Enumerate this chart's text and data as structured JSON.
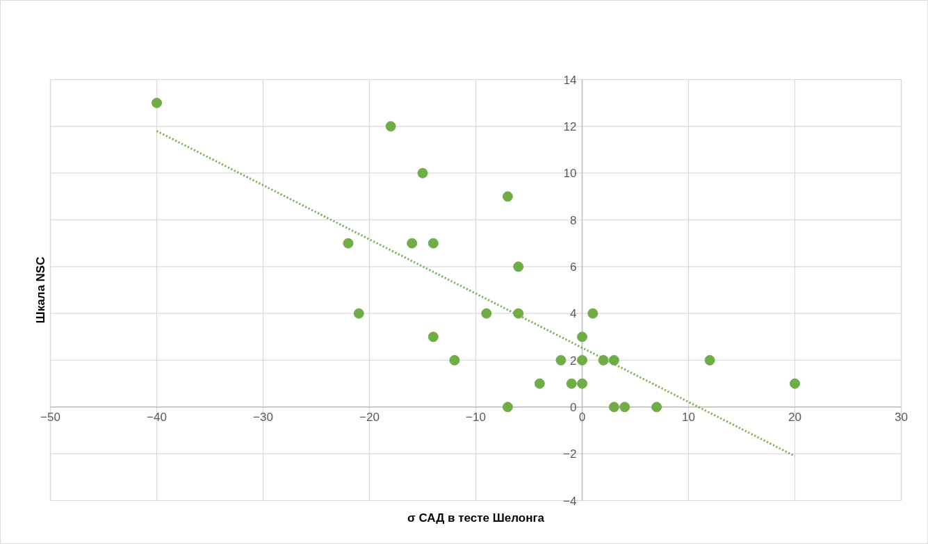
{
  "chart_data": {
    "type": "scatter",
    "xlabel": "σ САД в тесте Шелонга",
    "ylabel": "Шкала NSC",
    "xlim": [
      -50,
      30
    ],
    "xticks": [
      -50,
      -40,
      -30,
      -20,
      -10,
      0,
      10,
      20,
      30
    ],
    "ylim": [
      -4,
      14
    ],
    "yticks": [
      -4,
      -2,
      0,
      2,
      4,
      6,
      8,
      10,
      12,
      14
    ],
    "grid": true,
    "series": [
      {
        "marker": "circle",
        "color": "#70ad47",
        "x": [
          -40,
          -18,
          -15,
          -7,
          -22,
          -16,
          -14,
          -6,
          -21,
          -9,
          -6,
          1,
          -14,
          0,
          -12,
          -2,
          0,
          2,
          3,
          12,
          -4,
          -1,
          0,
          20,
          -7,
          3,
          4,
          7
        ],
        "values": [
          13,
          12,
          10,
          9,
          7,
          7,
          7,
          6,
          4,
          4,
          4,
          4,
          3,
          3,
          2,
          2,
          2,
          2,
          2,
          2,
          1,
          1,
          1,
          1,
          0,
          0,
          0,
          0
        ]
      },
      {
        "type": "line",
        "color": "#70ad47",
        "line_style": "dotted",
        "x": [
          -40,
          20
        ],
        "values": [
          11.8,
          -2.1
        ]
      }
    ]
  }
}
